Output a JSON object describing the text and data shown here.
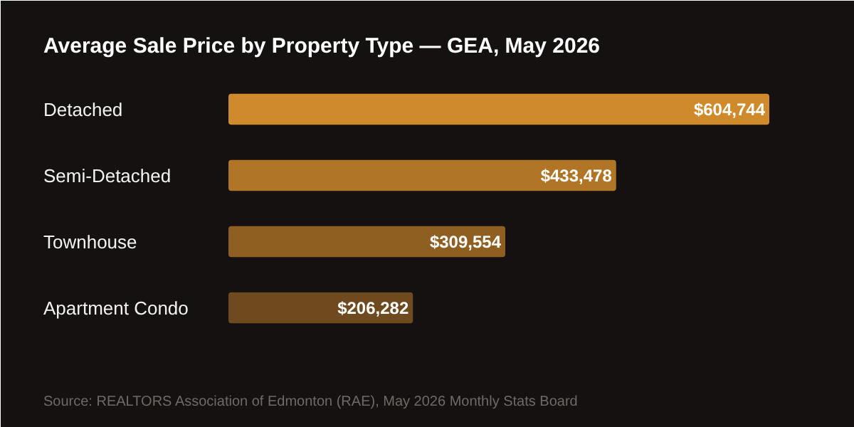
{
  "chart_data": {
    "type": "bar",
    "orientation": "horizontal",
    "title": "Average Sale Price by Property Type — GEA, May 2026",
    "categories": [
      "Detached",
      "Semi-Detached",
      "Townhouse",
      "Apartment Condo"
    ],
    "values": [
      604744,
      433478,
      309554,
      206282
    ],
    "colors": [
      "#cf8a2c",
      "#b07626",
      "#8f5f22",
      "#6e4a1e"
    ],
    "value_labels": [
      "$604,744",
      "$433,478",
      "$309,554",
      "$206,282"
    ],
    "annotations": [
      "Source: REALTORS Association of Edmonton (RAE), May 2026 Monthly Stats Board"
    ]
  }
}
